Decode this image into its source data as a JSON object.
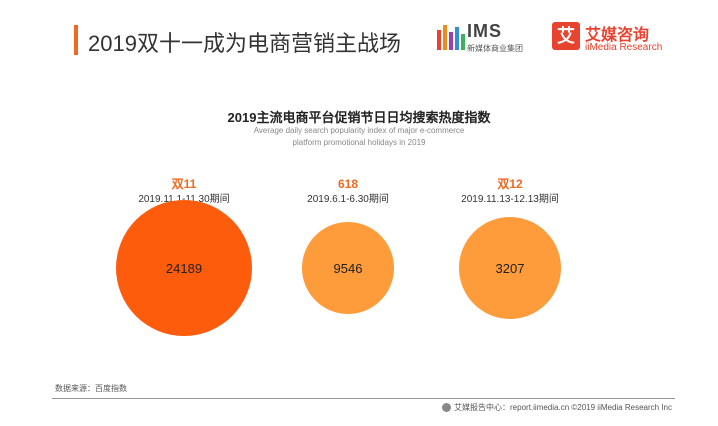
{
  "header": {
    "title": "2019双十一成为电商营销主战场",
    "accent_color": "#ee6a23"
  },
  "logos": {
    "ims": {
      "name": "IMS",
      "subtitle": "新媒体商业集团"
    },
    "iimedia": {
      "mark": "艾",
      "name": "艾媒咨询",
      "english": "iiMedia Research"
    }
  },
  "chart_data": {
    "type": "bubble",
    "title": "2019主流电商平台促销节日日均搜索热度指数",
    "subtitle": "Average daily search popularity index of major e-commerce platform promotional holidays in 2019",
    "categories": [
      "双11",
      "618",
      "双12"
    ],
    "dates": [
      "2019.11.1-11.30期间",
      "2019.6.1-6.30期间",
      "2019.11.13-12.13期间"
    ],
    "values": [
      24189,
      9546,
      3207
    ],
    "colors": [
      "#fc5c0b",
      "#fe9b3a",
      "#fe9b3a"
    ]
  },
  "source": "数据来源：百度指数",
  "footer": {
    "text": "艾媒报告中心：report.iimedia.cn  ©2019  iiMedia Research  Inc"
  }
}
